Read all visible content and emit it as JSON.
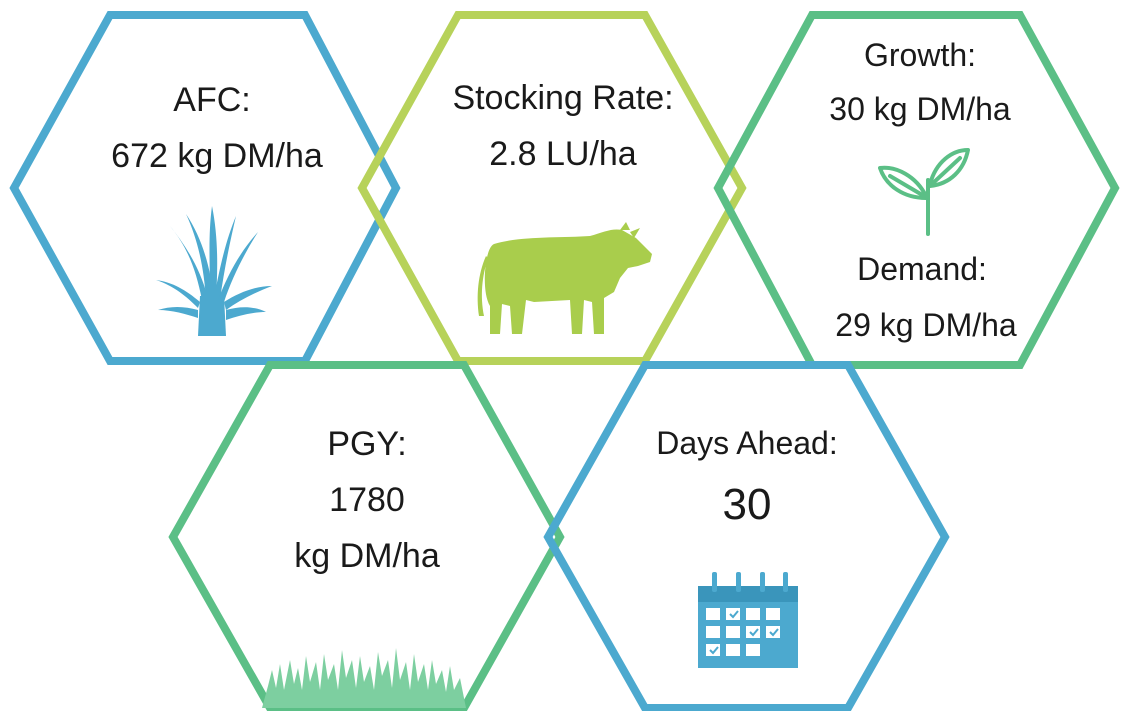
{
  "colors": {
    "blue": "#4ca9cf",
    "lime": "#b7d25a",
    "green": "#5bbf86",
    "cow": "#a9cd4c",
    "grass": "#7dcfa0",
    "text": "#1a1a1a"
  },
  "tiles": [
    {
      "id": "afc",
      "icon": "grass-tuft-icon",
      "label": "AFC:",
      "value": "672 kg DM/ha"
    },
    {
      "id": "stocking-rate",
      "icon": "cow-icon",
      "label": "Stocking Rate:",
      "value": "2.8 LU/ha"
    },
    {
      "id": "growth-demand",
      "icon": "sprout-icon",
      "growth_label": "Growth:",
      "growth_value": "30 kg DM/ha",
      "demand_label": "Demand:",
      "demand_value": "29 kg DM/ha"
    },
    {
      "id": "pgy",
      "icon": "grass-field-icon",
      "label": "PGY:",
      "value_line1": "1780",
      "value_line2": "kg DM/ha"
    },
    {
      "id": "days-ahead",
      "icon": "calendar-icon",
      "label": "Days Ahead:",
      "value": "30"
    }
  ]
}
